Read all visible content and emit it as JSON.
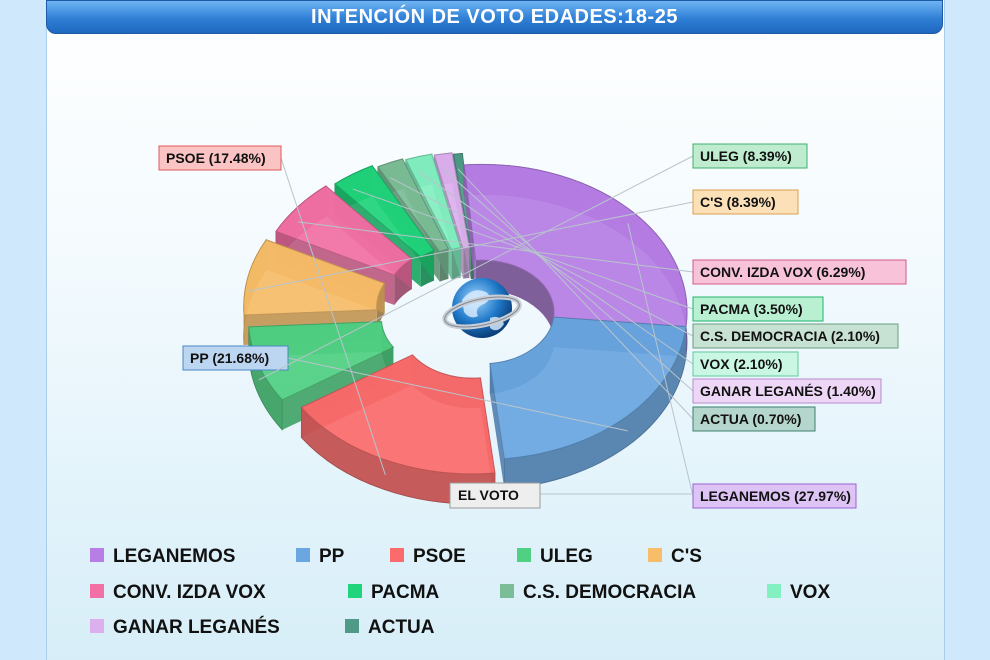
{
  "chart_data": {
    "type": "pie",
    "title": "INTENCIÓN DE VOTO EDADES:18-25",
    "center_label": "EL VOTO",
    "slices": [
      {
        "name": "LEGANEMOS",
        "value": 27.97,
        "label": "LEGANEMOS (27.97%)",
        "color": "#b77ee6"
      },
      {
        "name": "PP",
        "value": 21.68,
        "label": "PP (21.68%)",
        "color": "#6aa6e0"
      },
      {
        "name": "PSOE",
        "value": 17.48,
        "label": "PSOE (17.48%)",
        "color": "#fb6b6b"
      },
      {
        "name": "ULEG",
        "value": 8.39,
        "label": "ULEG (8.39%)",
        "color": "#4fd082"
      },
      {
        "name": "C'S",
        "value": 8.39,
        "label": "C'S (8.39%)",
        "color": "#f8bd68"
      },
      {
        "name": "CONV. IZDA  VOX",
        "value": 6.29,
        "label": "CONV. IZDA  VOX  (6.29%)",
        "color": "#f270a4"
      },
      {
        "name": "PACMA",
        "value": 3.5,
        "label": "PACMA  (3.50%)",
        "color": "#1fd47a"
      },
      {
        "name": "C.S. DEMOCRACIA",
        "value": 2.1,
        "label": "C.S. DEMOCRACIA (2.10%)",
        "color": "#7bbd96"
      },
      {
        "name": "VOX",
        "value": 2.1,
        "label": "VOX (2.10%)",
        "color": "#82f0c0"
      },
      {
        "name": "GANAR LEGANÉS",
        "value": 1.4,
        "label": "GANAR LEGANÉS (1.40%)",
        "color": "#dcb0ee"
      },
      {
        "name": "ACTUA",
        "value": 0.7,
        "label": "ACTUA (0.70%)",
        "color": "#4e9a86"
      }
    ],
    "legend": [
      "LEGANEMOS",
      "PP",
      "PSOE",
      "ULEG",
      "C'S",
      "CONV. IZDA  VOX",
      "PACMA",
      "C.S. DEMOCRACIA",
      "VOX",
      "GANAR LEGANÉS",
      "ACTUA"
    ],
    "legend_position": "bottom"
  }
}
